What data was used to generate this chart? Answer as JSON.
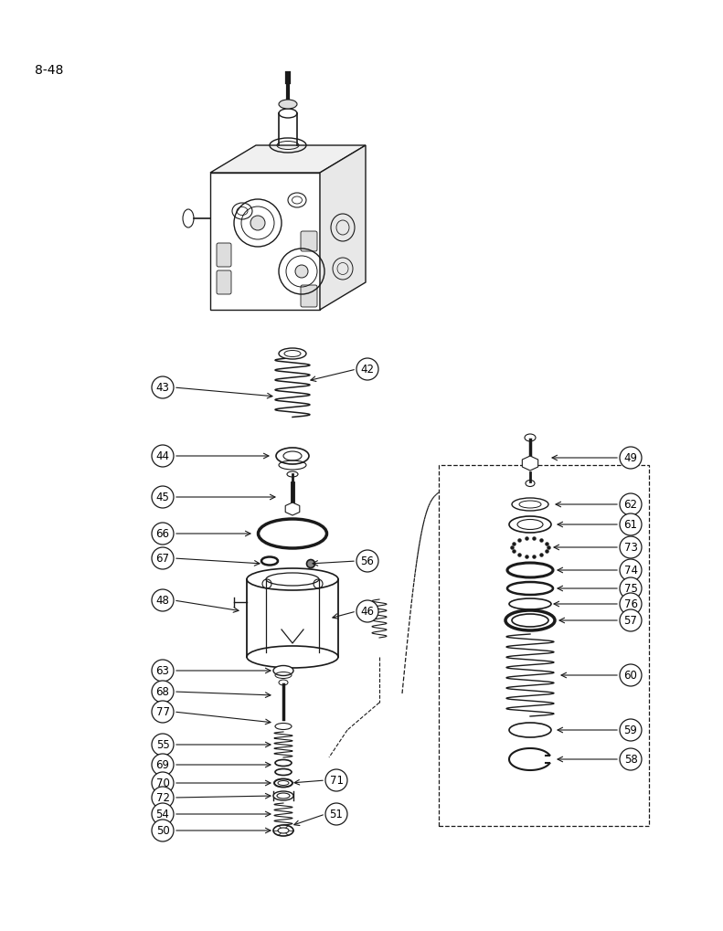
{
  "page_label": "8-48",
  "bg": "#ffffff",
  "lc": "#1a1a1a",
  "fs_label": 8.5,
  "fs_page": 10,
  "figw": 7.72,
  "figh": 10.0,
  "dpi": 100
}
